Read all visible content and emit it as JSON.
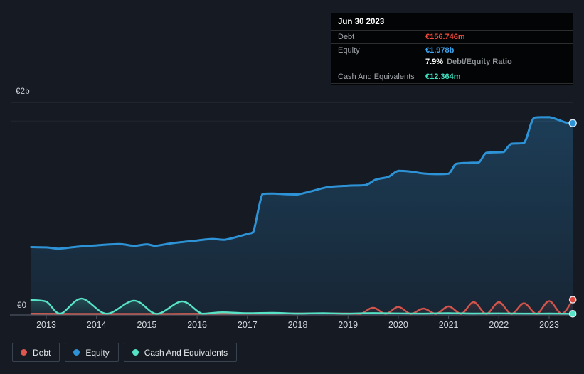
{
  "page": {
    "background_color": "#151a23"
  },
  "tooltip": {
    "background_color": "#030405",
    "date": "Jun 30 2023",
    "debt": {
      "label": "Debt",
      "value": "€156.746m",
      "color": "#f0483a"
    },
    "equity": {
      "label": "Equity",
      "value": "€1.978b",
      "color": "#3ea5f0"
    },
    "ratio": {
      "value": "7.9%",
      "label": "Debt/Equity Ratio"
    },
    "cash": {
      "label": "Cash And Equivalents",
      "value": "€12.364m",
      "color": "#3fe2c1"
    }
  },
  "legend": {
    "items": [
      {
        "label": "Debt",
        "color": "#e1564c"
      },
      {
        "label": "Equity",
        "color": "#2e93d6"
      },
      {
        "label": "Cash And Equivalents",
        "color": "#55e2c4"
      }
    ]
  },
  "chart_data": {
    "type": "area",
    "title": "Debt, Equity and Cash history, hover point Jun 30 2023",
    "x_domain": [
      2012.7,
      2023.47
    ],
    "x_ticks": [
      2013,
      2014,
      2015,
      2016,
      2017,
      2018,
      2019,
      2020,
      2021,
      2022,
      2023
    ],
    "y_axis": {
      "top_label": "€2b",
      "zero_label": "€0",
      "unit": "billions EUR",
      "max_b": 2.19,
      "gridline_values_b": [
        1,
        2
      ]
    },
    "series": [
      {
        "name": "Equity",
        "color": "#2e93d6",
        "points": [
          [
            2012.7,
            0.7
          ],
          [
            2013.0,
            0.697
          ],
          [
            2013.25,
            0.684
          ],
          [
            2013.6,
            0.703
          ],
          [
            2014.0,
            0.718
          ],
          [
            2014.45,
            0.731
          ],
          [
            2014.75,
            0.713
          ],
          [
            2015.0,
            0.729
          ],
          [
            2015.17,
            0.713
          ],
          [
            2015.5,
            0.74
          ],
          [
            2016.0,
            0.768
          ],
          [
            2016.3,
            0.784
          ],
          [
            2016.55,
            0.776
          ],
          [
            2017.0,
            0.836
          ],
          [
            2017.12,
            0.86
          ],
          [
            2017.3,
            1.248
          ],
          [
            2017.5,
            1.252
          ],
          [
            2017.8,
            1.244
          ],
          [
            2018.0,
            1.243
          ],
          [
            2018.3,
            1.28
          ],
          [
            2018.6,
            1.318
          ],
          [
            2019.0,
            1.333
          ],
          [
            2019.35,
            1.34
          ],
          [
            2019.55,
            1.396
          ],
          [
            2019.8,
            1.424
          ],
          [
            2020.0,
            1.486
          ],
          [
            2020.25,
            1.478
          ],
          [
            2020.5,
            1.459
          ],
          [
            2020.75,
            1.452
          ],
          [
            2021.0,
            1.457
          ],
          [
            2021.15,
            1.558
          ],
          [
            2021.4,
            1.568
          ],
          [
            2021.6,
            1.572
          ],
          [
            2021.75,
            1.672
          ],
          [
            2022.0,
            1.678
          ],
          [
            2022.1,
            1.682
          ],
          [
            2022.25,
            1.766
          ],
          [
            2022.5,
            1.772
          ],
          [
            2022.7,
            2.034
          ],
          [
            2023.0,
            2.04
          ],
          [
            2023.2,
            2.008
          ],
          [
            2023.35,
            1.982
          ],
          [
            2023.47,
            1.978
          ]
        ]
      },
      {
        "name": "Debt",
        "color": "#d2544a",
        "points": [
          [
            2012.7,
            0.013
          ],
          [
            2013.5,
            0.012
          ],
          [
            2014.5,
            0.012
          ],
          [
            2015.5,
            0.012
          ],
          [
            2016.5,
            0.013
          ],
          [
            2017.5,
            0.014
          ],
          [
            2018.5,
            0.016
          ],
          [
            2019.0,
            0.015
          ],
          [
            2019.25,
            0.012
          ],
          [
            2019.5,
            0.075
          ],
          [
            2019.75,
            0.012
          ],
          [
            2020.0,
            0.083
          ],
          [
            2020.25,
            0.012
          ],
          [
            2020.5,
            0.066
          ],
          [
            2020.75,
            0.012
          ],
          [
            2021.0,
            0.088
          ],
          [
            2021.25,
            0.012
          ],
          [
            2021.5,
            0.132
          ],
          [
            2021.75,
            0.012
          ],
          [
            2022.0,
            0.132
          ],
          [
            2022.25,
            0.012
          ],
          [
            2022.5,
            0.12
          ],
          [
            2022.75,
            0.012
          ],
          [
            2023.0,
            0.144
          ],
          [
            2023.25,
            0.012
          ],
          [
            2023.47,
            0.157
          ]
        ]
      },
      {
        "name": "Cash And Equivalents",
        "color": "#57e3c5",
        "points": [
          [
            2012.7,
            0.154
          ],
          [
            2013.0,
            0.138
          ],
          [
            2013.28,
            0.014
          ],
          [
            2013.7,
            0.168
          ],
          [
            2014.2,
            0.013
          ],
          [
            2014.75,
            0.147
          ],
          [
            2015.2,
            0.012
          ],
          [
            2015.7,
            0.139
          ],
          [
            2016.1,
            0.013
          ],
          [
            2016.5,
            0.028
          ],
          [
            2017.0,
            0.018
          ],
          [
            2017.5,
            0.022
          ],
          [
            2018.0,
            0.015
          ],
          [
            2018.5,
            0.018
          ],
          [
            2019.0,
            0.014
          ],
          [
            2019.5,
            0.02
          ],
          [
            2020.0,
            0.016
          ],
          [
            2020.5,
            0.014
          ],
          [
            2021.0,
            0.018
          ],
          [
            2021.5,
            0.015
          ],
          [
            2022.0,
            0.016
          ],
          [
            2022.5,
            0.014
          ],
          [
            2023.0,
            0.015
          ],
          [
            2023.47,
            0.0124
          ]
        ]
      }
    ],
    "end_markers": [
      {
        "series": "Equity",
        "x": 2023.47,
        "value_b": 1.978,
        "color": "#2e93d6"
      },
      {
        "series": "Debt",
        "x": 2023.47,
        "value_b": 0.157,
        "color": "#e0483d"
      },
      {
        "series": "Cash And Equivalents",
        "x": 2023.47,
        "value_b": 0.0124,
        "color": "#57e3c5"
      }
    ]
  }
}
